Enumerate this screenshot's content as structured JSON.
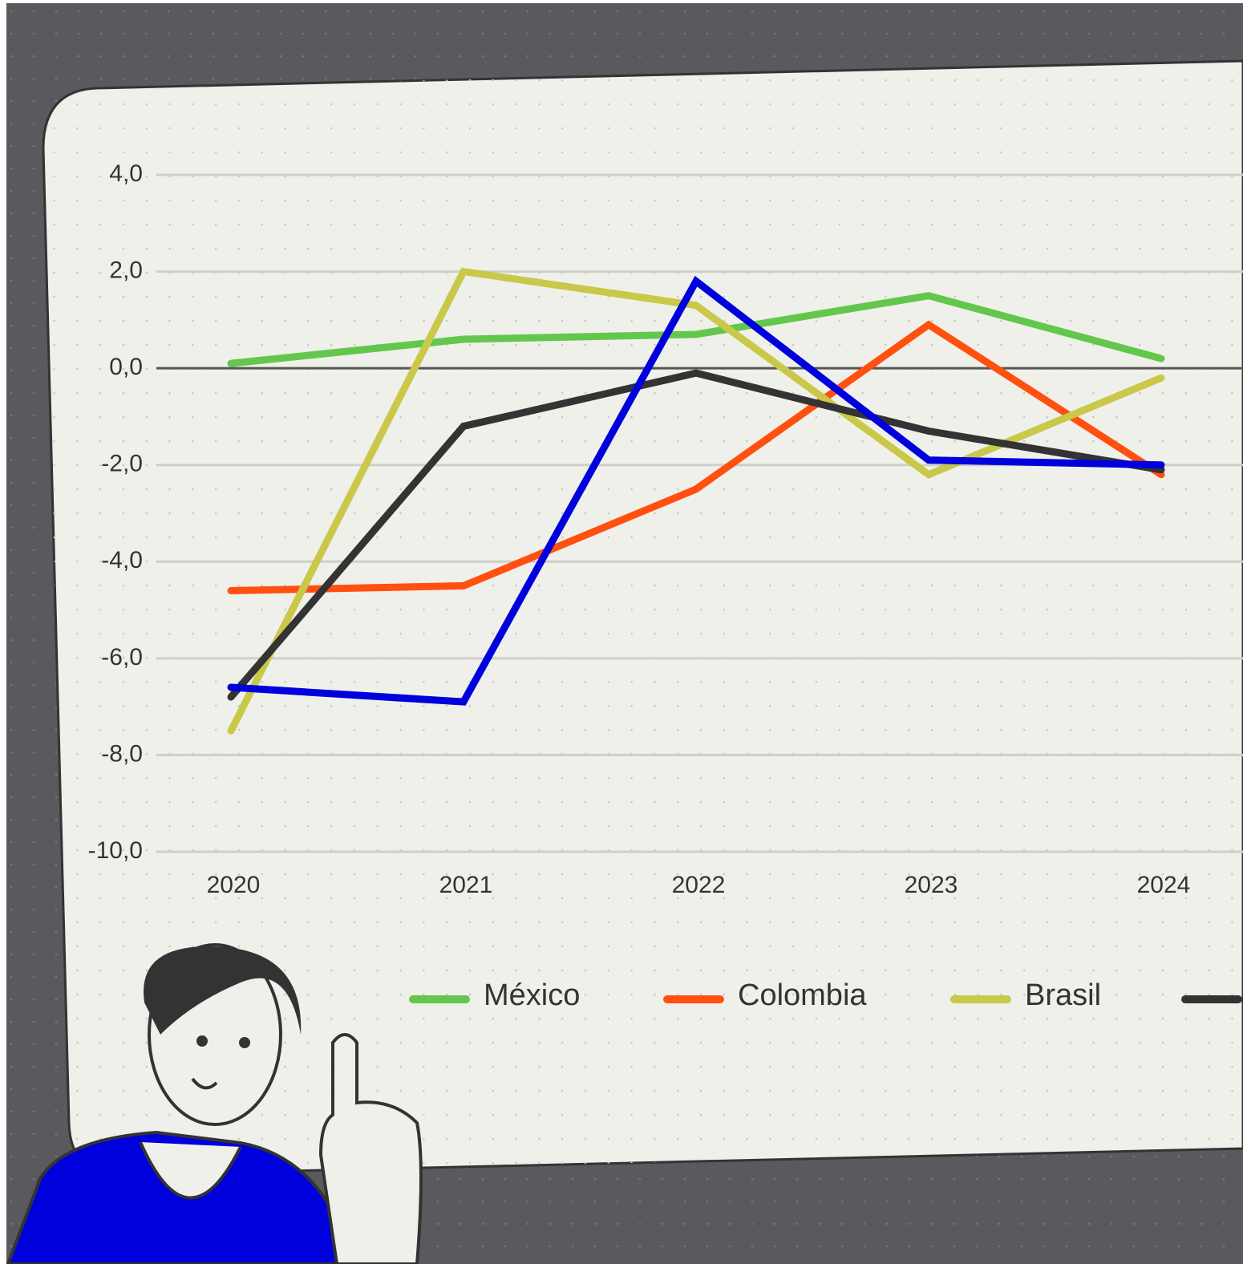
{
  "chart_data": {
    "type": "line",
    "categories": [
      "2020",
      "2021",
      "2022",
      "2023",
      "2024"
    ],
    "series": [
      {
        "name": "México",
        "color": "#63c74d",
        "values": [
          0.1,
          0.6,
          0.7,
          1.5,
          0.2
        ]
      },
      {
        "name": "Colombia",
        "color": "#ff5010",
        "values": [
          -4.6,
          -4.5,
          -2.5,
          0.9,
          -2.2
        ]
      },
      {
        "name": "Brasil",
        "color": "#c9c84a",
        "values": [
          -7.5,
          2.0,
          1.3,
          -2.2,
          -0.2
        ]
      },
      {
        "color": "#333333",
        "values": [
          -6.8,
          -1.2,
          -0.1,
          -1.3,
          -2.1
        ]
      },
      {
        "color": "#0000dd",
        "values": [
          -6.6,
          -6.9,
          1.8,
          -1.9,
          -2.0
        ]
      }
    ],
    "ylim": [
      -10,
      4
    ],
    "yticks": [
      {
        "value": -10,
        "label": "-10,0"
      },
      {
        "value": -8,
        "label": "-8,0"
      },
      {
        "value": -6,
        "label": "-6,0"
      },
      {
        "value": -4,
        "label": "-4,0"
      },
      {
        "value": -2,
        "label": "-2,0"
      },
      {
        "value": 0,
        "label": "0,0"
      },
      {
        "value": 2,
        "label": "2,0"
      },
      {
        "value": 4,
        "label": "4,0"
      }
    ],
    "grid": true
  }
}
